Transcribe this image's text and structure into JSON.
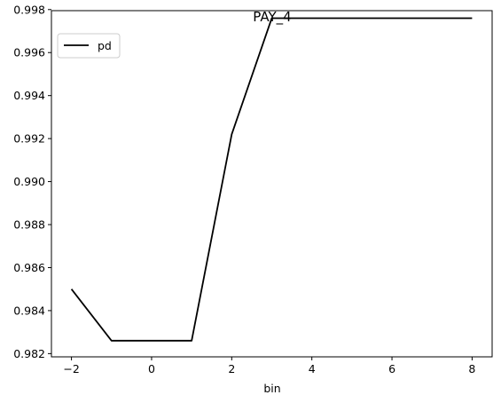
{
  "chart_data": {
    "type": "line",
    "title": "PAY_4",
    "xlabel": "bin",
    "ylabel": "",
    "xlim": [
      -2.5,
      8.5
    ],
    "ylim": [
      0.98185,
      0.99795
    ],
    "x_ticks": [
      -2,
      0,
      2,
      4,
      6,
      8
    ],
    "x_tick_labels": [
      "−2",
      "0",
      "2",
      "4",
      "6",
      "8"
    ],
    "y_ticks": [
      0.982,
      0.984,
      0.986,
      0.988,
      0.99,
      0.992,
      0.994,
      0.996,
      0.998
    ],
    "y_tick_labels": [
      "0.982",
      "0.984",
      "0.986",
      "0.988",
      "0.990",
      "0.992",
      "0.994",
      "0.996",
      "0.998"
    ],
    "grid": false,
    "legend_position": "top-left",
    "series": [
      {
        "name": "pd",
        "color": "#000000",
        "x": [
          -2,
          -1,
          0,
          1,
          2,
          3,
          4,
          5,
          6,
          7,
          8
        ],
        "y": [
          0.985,
          0.9826,
          0.9826,
          0.9826,
          0.9922,
          0.9976,
          0.9976,
          0.9976,
          0.9976,
          0.9976,
          0.9976
        ]
      }
    ]
  }
}
